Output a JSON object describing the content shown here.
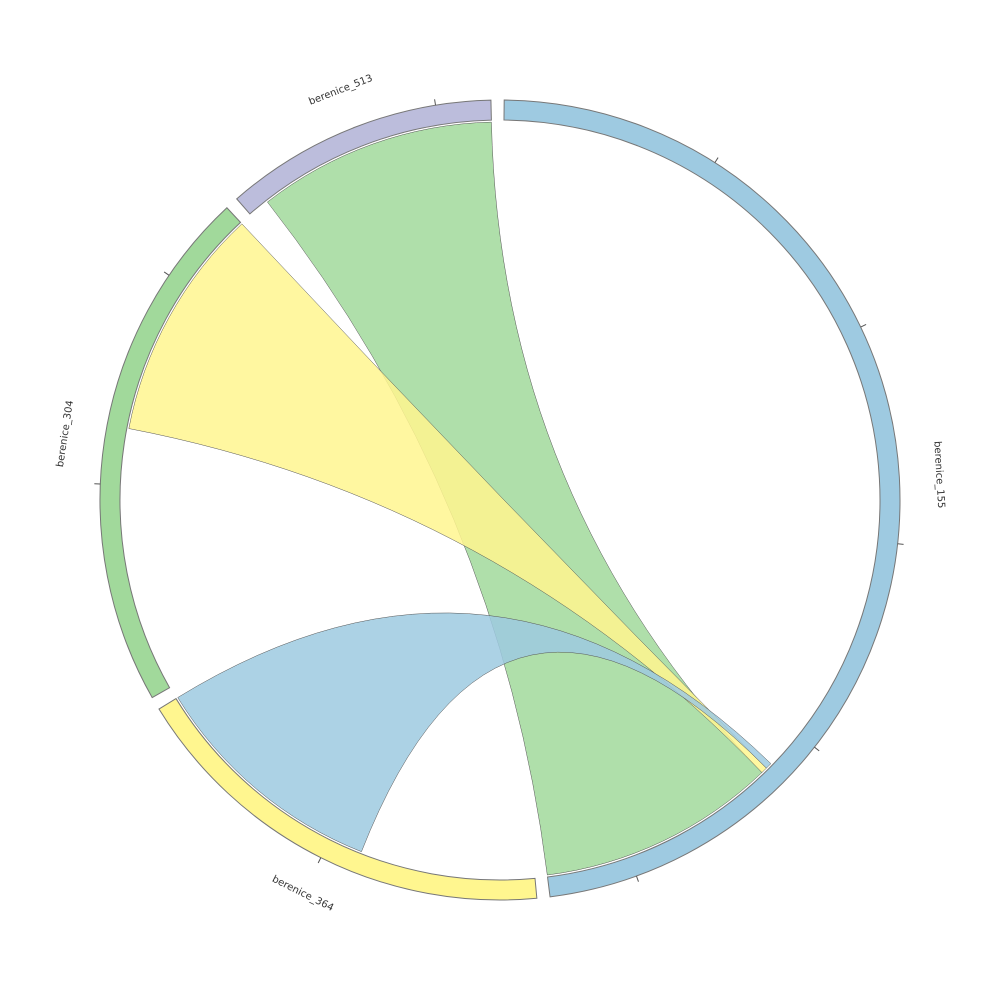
{
  "chart_data": {
    "type": "chord",
    "groups": [
      {
        "name": "berenice_155",
        "color": "#9ecae1",
        "value": 54
      },
      {
        "name": "berenice_364",
        "color": "#fff68f",
        "value": 20
      },
      {
        "name": "berenice_304",
        "color": "#a1d99b",
        "value": 24
      },
      {
        "name": "berenice_513",
        "color": "#bcbddc",
        "value": 12.5
      }
    ],
    "links": [
      {
        "source": "berenice_513",
        "target": "berenice_155",
        "value": 11.5,
        "target_value": 11.5,
        "color": "#a1d99b"
      },
      {
        "source": "berenice_304",
        "target": "berenice_155",
        "value": 11.3,
        "target_value": 0.3,
        "color": "#fff68f"
      },
      {
        "source": "berenice_364",
        "target": "berenice_155",
        "value": 11.6,
        "target_value": 0.3,
        "color": "#9ecae1"
      }
    ],
    "tick_step": 10
  }
}
